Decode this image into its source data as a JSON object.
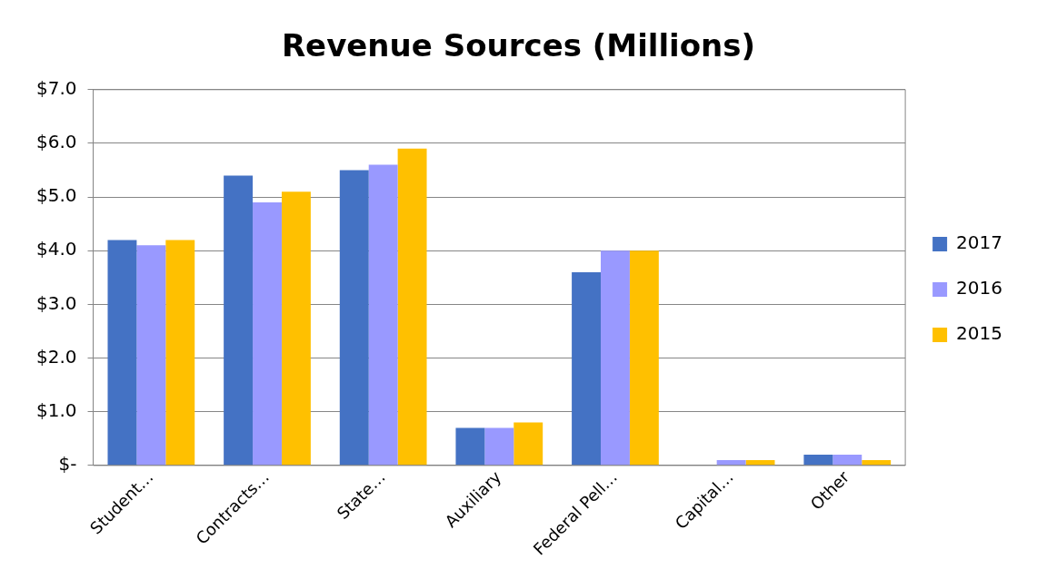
{
  "chart_data": {
    "type": "bar",
    "title": "Revenue Sources (Millions)",
    "categories": [
      "Student…",
      "Contracts…",
      "State…",
      "Auxiliary",
      "Federal Pell…",
      "Capital…",
      "Other"
    ],
    "series": [
      {
        "name": "2017",
        "color": "#4472c4",
        "values": [
          4.2,
          5.4,
          5.5,
          0.7,
          3.6,
          0.0,
          0.2
        ]
      },
      {
        "name": "2016",
        "color": "#9999ff",
        "values": [
          4.1,
          4.9,
          5.6,
          0.7,
          4.0,
          0.1,
          0.2
        ]
      },
      {
        "name": "2015",
        "color": "#ffc000",
        "values": [
          4.2,
          5.1,
          5.9,
          0.8,
          4.0,
          0.1,
          0.1
        ]
      }
    ],
    "ylim": [
      0,
      7
    ],
    "yticks": [
      {
        "value": 0,
        "label": "$-"
      },
      {
        "value": 1,
        "label": "$1.0"
      },
      {
        "value": 2,
        "label": "$2.0"
      },
      {
        "value": 3,
        "label": "$3.0"
      },
      {
        "value": 4,
        "label": "$4.0"
      },
      {
        "value": 5,
        "label": "$5.0"
      },
      {
        "value": 6,
        "label": "$6.0"
      },
      {
        "value": 7,
        "label": "$7.0"
      }
    ],
    "grid": "y",
    "legend": "right"
  }
}
